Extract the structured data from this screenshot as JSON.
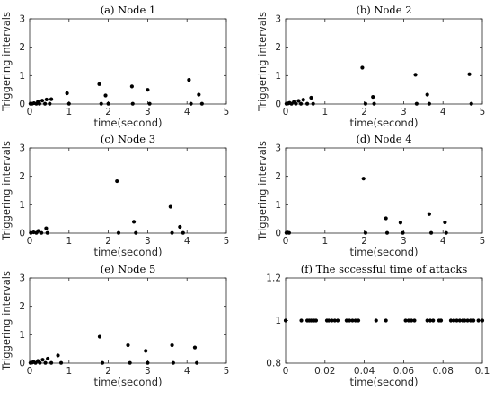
{
  "colors": {
    "axis": "#262626",
    "marker": "#000000",
    "background": "#ffffff"
  },
  "chart_data": [
    {
      "type": "scatter",
      "title": "(a) Node 1",
      "xlabel": "time(second)",
      "ylabel": "Triggering intervals",
      "xlim": [
        0,
        5
      ],
      "ylim": [
        0,
        3
      ],
      "xticks": [
        "0",
        "1",
        "2",
        "3",
        "4",
        "5"
      ],
      "yticks": [
        "0",
        "1",
        "2",
        "3"
      ],
      "series": [
        {
          "points": [
            [
              0.02,
              0.01
            ],
            [
              0.06,
              0.01
            ],
            [
              0.11,
              0.03
            ],
            [
              0.17,
              0.01
            ],
            [
              0.21,
              0.08
            ],
            [
              0.25,
              0.01
            ],
            [
              0.32,
              0.12
            ],
            [
              0.39,
              0.01
            ],
            [
              0.43,
              0.16
            ],
            [
              0.51,
              0.01
            ],
            [
              0.55,
              0.17
            ],
            [
              0.95,
              0.38
            ],
            [
              1.0,
              0.01
            ],
            [
              1.77,
              0.7
            ],
            [
              1.82,
              0.01
            ],
            [
              1.93,
              0.3
            ],
            [
              2.0,
              0.01
            ],
            [
              2.6,
              0.62
            ],
            [
              2.62,
              0.01
            ],
            [
              3.0,
              0.5
            ],
            [
              3.05,
              0.01
            ],
            [
              4.05,
              0.85
            ],
            [
              4.1,
              0.01
            ],
            [
              4.3,
              0.33
            ],
            [
              4.38,
              0.01
            ]
          ]
        }
      ]
    },
    {
      "type": "scatter",
      "title": "(b) Node 2",
      "xlabel": "time(second)",
      "ylabel": "Triggering intervals",
      "xlim": [
        0,
        5
      ],
      "ylim": [
        0,
        3
      ],
      "xticks": [
        "0",
        "1",
        "2",
        "3",
        "4",
        "5"
      ],
      "yticks": [
        "0",
        "1",
        "2",
        "3"
      ],
      "series": [
        {
          "points": [
            [
              0.02,
              0.01
            ],
            [
              0.06,
              0.02
            ],
            [
              0.1,
              0.04
            ],
            [
              0.15,
              0.01
            ],
            [
              0.21,
              0.07
            ],
            [
              0.26,
              0.01
            ],
            [
              0.33,
              0.11
            ],
            [
              0.39,
              0.01
            ],
            [
              0.45,
              0.15
            ],
            [
              0.55,
              0.01
            ],
            [
              0.65,
              0.22
            ],
            [
              0.7,
              0.01
            ],
            [
              1.95,
              1.28
            ],
            [
              2.03,
              0.01
            ],
            [
              2.22,
              0.25
            ],
            [
              2.25,
              0.01
            ],
            [
              3.3,
              1.03
            ],
            [
              3.33,
              0.01
            ],
            [
              3.6,
              0.33
            ],
            [
              3.65,
              0.01
            ],
            [
              4.67,
              1.05
            ],
            [
              4.72,
              0.01
            ]
          ]
        }
      ]
    },
    {
      "type": "scatter",
      "title": "(c) Node 3",
      "xlabel": "time(second)",
      "ylabel": "Triggering intervals",
      "xlim": [
        0,
        5
      ],
      "ylim": [
        0,
        3
      ],
      "xticks": [
        "0",
        "1",
        "2",
        "3",
        "4",
        "5"
      ],
      "yticks": [
        "0",
        "1",
        "2",
        "3"
      ],
      "series": [
        {
          "points": [
            [
              0.03,
              0.01
            ],
            [
              0.1,
              0.03
            ],
            [
              0.17,
              0.01
            ],
            [
              0.22,
              0.08
            ],
            [
              0.3,
              0.01
            ],
            [
              0.42,
              0.17
            ],
            [
              0.45,
              0.01
            ],
            [
              2.22,
              1.83
            ],
            [
              2.26,
              0.01
            ],
            [
              2.65,
              0.4
            ],
            [
              2.7,
              0.01
            ],
            [
              3.58,
              0.93
            ],
            [
              3.62,
              0.01
            ],
            [
              3.82,
              0.22
            ],
            [
              3.9,
              0.01
            ]
          ]
        }
      ]
    },
    {
      "type": "scatter",
      "title": "(d) Node 4",
      "xlabel": "time(second)",
      "ylabel": "Triggering intervals",
      "xlim": [
        0,
        5
      ],
      "ylim": [
        0,
        3
      ],
      "xticks": [
        "0",
        "1",
        "2",
        "3",
        "4",
        "5"
      ],
      "yticks": [
        "0",
        "1",
        "2",
        "3"
      ],
      "series": [
        {
          "points": [
            [
              0.02,
              0.01
            ],
            [
              0.05,
              0.02
            ],
            [
              0.09,
              0.01
            ],
            [
              1.98,
              1.92
            ],
            [
              2.03,
              0.01
            ],
            [
              2.55,
              0.52
            ],
            [
              2.58,
              0.01
            ],
            [
              2.92,
              0.37
            ],
            [
              2.98,
              0.01
            ],
            [
              3.65,
              0.67
            ],
            [
              3.7,
              0.01
            ],
            [
              4.05,
              0.38
            ],
            [
              4.08,
              0.01
            ]
          ]
        }
      ]
    },
    {
      "type": "scatter",
      "title": "(e) Node 5",
      "xlabel": "time(second)",
      "ylabel": "Triggering intervals",
      "xlim": [
        0,
        5
      ],
      "ylim": [
        0,
        3
      ],
      "xticks": [
        "0",
        "1",
        "2",
        "3",
        "4",
        "5"
      ],
      "yticks": [
        "0",
        "1",
        "2",
        "3"
      ],
      "series": [
        {
          "points": [
            [
              0.02,
              0.01
            ],
            [
              0.06,
              0.02
            ],
            [
              0.1,
              0.04
            ],
            [
              0.15,
              0.01
            ],
            [
              0.21,
              0.08
            ],
            [
              0.26,
              0.01
            ],
            [
              0.33,
              0.12
            ],
            [
              0.4,
              0.01
            ],
            [
              0.46,
              0.16
            ],
            [
              0.55,
              0.01
            ],
            [
              0.72,
              0.27
            ],
            [
              0.8,
              0.01
            ],
            [
              1.78,
              0.93
            ],
            [
              1.85,
              0.01
            ],
            [
              2.5,
              0.63
            ],
            [
              2.55,
              0.01
            ],
            [
              2.95,
              0.43
            ],
            [
              3.0,
              0.01
            ],
            [
              3.62,
              0.63
            ],
            [
              3.65,
              0.01
            ],
            [
              4.2,
              0.55
            ],
            [
              4.25,
              0.01
            ]
          ]
        }
      ]
    },
    {
      "type": "scatter",
      "title": "(f) The sccessful time of attacks",
      "xlabel": "time(second)",
      "ylabel": "",
      "xlim": [
        0,
        0.1
      ],
      "ylim": [
        0.8,
        1.2
      ],
      "xticks": [
        "0",
        "0.02",
        "0.04",
        "0.06",
        "0.08",
        "0.1"
      ],
      "yticks": [
        "0.8",
        "1",
        "1.2"
      ],
      "series": [
        {
          "points": [
            [
              0.0,
              1
            ],
            [
              0.008,
              1
            ],
            [
              0.011,
              1
            ],
            [
              0.012,
              1
            ],
            [
              0.013,
              1
            ],
            [
              0.014,
              1
            ],
            [
              0.0145,
              1
            ],
            [
              0.0155,
              1
            ],
            [
              0.021,
              1
            ],
            [
              0.022,
              1
            ],
            [
              0.0235,
              1
            ],
            [
              0.025,
              1
            ],
            [
              0.0265,
              1
            ],
            [
              0.031,
              1
            ],
            [
              0.0325,
              1
            ],
            [
              0.034,
              1
            ],
            [
              0.0355,
              1
            ],
            [
              0.037,
              1
            ],
            [
              0.046,
              1
            ],
            [
              0.051,
              1
            ],
            [
              0.061,
              1
            ],
            [
              0.0625,
              1
            ],
            [
              0.064,
              1
            ],
            [
              0.0655,
              1
            ],
            [
              0.072,
              1
            ],
            [
              0.0735,
              1
            ],
            [
              0.075,
              1
            ],
            [
              0.078,
              1
            ],
            [
              0.079,
              1
            ],
            [
              0.084,
              1
            ],
            [
              0.0855,
              1
            ],
            [
              0.087,
              1
            ],
            [
              0.0885,
              1
            ],
            [
              0.09,
              1
            ],
            [
              0.091,
              1
            ],
            [
              0.0925,
              1
            ],
            [
              0.094,
              1
            ],
            [
              0.0955,
              1
            ],
            [
              0.098,
              1
            ],
            [
              0.1,
              1
            ]
          ]
        }
      ]
    }
  ]
}
